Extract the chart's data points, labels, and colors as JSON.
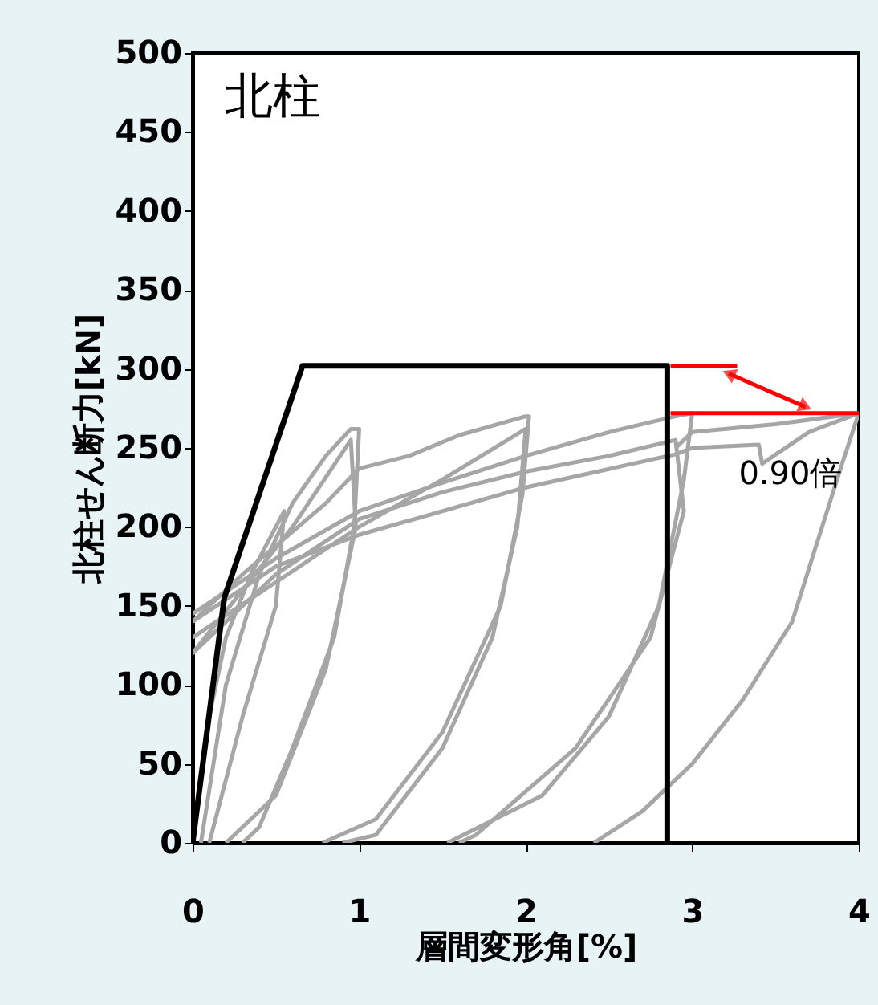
{
  "chart_data": {
    "type": "line",
    "title": "北柱",
    "xlabel": "層間変形角[%]",
    "ylabel": "北柱せん断力[kN]",
    "xlim": [
      0,
      4
    ],
    "xticks": [
      0,
      1,
      2,
      3,
      4
    ],
    "ylim": [
      0,
      500
    ],
    "yticks": [
      0,
      50,
      100,
      150,
      200,
      250,
      300,
      350,
      400,
      450,
      500
    ],
    "marker": "none",
    "line_style": "solid",
    "annotations": [
      {
        "text": "0.90倍",
        "x": 3.59,
        "y": 272
      }
    ],
    "series": [
      {
        "color": "#a6a6a6",
        "x": [
          0,
          0.1,
          0.2,
          0.35,
          0.5,
          0.55,
          0.5,
          0.3,
          0.1
        ],
        "values": [
          0,
          80,
          130,
          170,
          200,
          210,
          150,
          80,
          0
        ]
      },
      {
        "color": "#a6a6a6",
        "x": [
          0.05,
          0.2,
          0.4,
          0.6,
          0.8,
          0.95,
          1.0,
          0.97,
          0.85,
          0.6,
          0.4,
          0.3
        ],
        "values": [
          0,
          100,
          170,
          215,
          245,
          262,
          262,
          200,
          130,
          60,
          10,
          0
        ]
      },
      {
        "color": "#a6a6a6",
        "x": [
          0,
          0.3,
          0.6,
          0.95,
          0.98,
          0.8,
          0.5,
          0.2
        ],
        "values": [
          120,
          160,
          200,
          255,
          200,
          110,
          30,
          0
        ]
      },
      {
        "color": "#a6a6a6",
        "x": [
          0,
          0.3,
          0.8,
          1.0,
          1.3,
          1.6,
          2.0,
          2.02,
          1.98,
          1.85,
          1.5,
          1.1,
          0.78
        ],
        "values": [
          140,
          170,
          215,
          237,
          245,
          258,
          270,
          270,
          220,
          150,
          70,
          15,
          0
        ]
      },
      {
        "color": "#a6a6a6",
        "x": [
          0,
          0.5,
          1.0,
          1.5,
          2.0,
          1.95,
          1.8,
          1.5,
          1.1,
          0.9
        ],
        "values": [
          130,
          165,
          200,
          230,
          262,
          200,
          130,
          60,
          5,
          0
        ]
      },
      {
        "color": "#a6a6a6",
        "x": [
          0,
          0.5,
          1.0,
          1.5,
          2.0,
          2.5,
          2.9,
          3.0,
          2.95,
          2.8,
          2.5,
          2.1,
          1.53
        ],
        "values": [
          145,
          180,
          210,
          228,
          245,
          260,
          270,
          272,
          230,
          150,
          80,
          30,
          0
        ]
      },
      {
        "color": "#a6a6a6",
        "x": [
          0,
          0.5,
          1.0,
          1.5,
          2.0,
          2.5,
          2.9,
          2.95,
          2.75,
          2.3,
          1.7,
          1.6
        ],
        "values": [
          120,
          170,
          205,
          222,
          235,
          245,
          255,
          210,
          130,
          60,
          5,
          0
        ]
      },
      {
        "color": "#a6a6a6",
        "x": [
          0,
          0.5,
          1.0,
          2.0,
          2.9,
          3.0,
          3.4,
          3.42,
          3.7,
          4.0
        ],
        "values": [
          140,
          175,
          195,
          225,
          246,
          250,
          252,
          240,
          260,
          272
        ]
      },
      {
        "color": "#a6a6a6",
        "x": [
          4.0,
          3.9,
          3.75,
          3.6,
          3.3,
          3.0,
          2.7,
          2.41
        ],
        "values": [
          272,
          240,
          190,
          140,
          90,
          50,
          20,
          0
        ]
      },
      {
        "color": "#a6a6a6",
        "x": [
          2.9,
          3.0,
          3.5,
          4.0
        ],
        "values": [
          250,
          260,
          265,
          272
        ]
      },
      {
        "color": "#000000",
        "x": [
          0,
          0.19,
          0.66,
          2.85,
          2.85
        ],
        "values": [
          0,
          155,
          302,
          302,
          0
        ]
      },
      {
        "color": "#ff0000",
        "x": [
          2.87,
          3.27
        ],
        "values": [
          302,
          302
        ]
      },
      {
        "color": "#ff0000",
        "x": [
          2.87,
          4.0
        ],
        "values": [
          272,
          272
        ]
      },
      {
        "color": "#ff0000",
        "marker": "triangle",
        "x": [
          3.22,
          3.68
        ],
        "values": [
          297,
          276
        ]
      }
    ]
  }
}
